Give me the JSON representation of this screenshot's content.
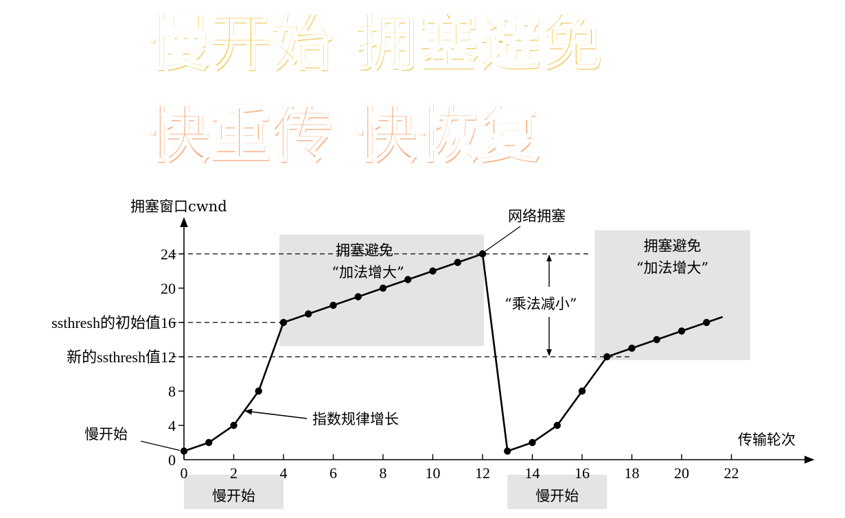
{
  "titles": {
    "line1": "慢开始 拥塞避免",
    "line2": "快重传 快恢复"
  },
  "chart_data": {
    "type": "line",
    "ylabel": "拥塞窗口cwnd",
    "xlabel": "传输轮次",
    "xlim": [
      0,
      23
    ],
    "ylim": [
      0,
      27
    ],
    "xticks": [
      0,
      2,
      4,
      6,
      8,
      10,
      12,
      14,
      16,
      18,
      20,
      22
    ],
    "yticks": [
      0,
      4,
      8,
      12,
      16,
      20,
      24
    ],
    "x": [
      0,
      1,
      2,
      3,
      4,
      5,
      6,
      7,
      8,
      9,
      10,
      11,
      12,
      13,
      14,
      15,
      16,
      17,
      18,
      19,
      20,
      21
    ],
    "y": [
      1,
      2,
      4,
      8,
      16,
      17,
      18,
      19,
      20,
      21,
      22,
      23,
      24,
      1,
      2,
      4,
      8,
      12,
      13,
      14,
      15,
      16
    ],
    "thresholds": [
      {
        "label": "ssthresh的初始值16",
        "value": 16
      },
      {
        "label": "新的ssthresh值12",
        "value": 12
      }
    ],
    "peak_line_value": 24,
    "regions": [
      {
        "label": "拥塞避免",
        "label2": "“加法增大”",
        "x_start": 4,
        "x_end": 12
      },
      {
        "label": "拥塞避免",
        "label2": "“加法增大”",
        "x_start": 17,
        "x_end": 22.7
      }
    ],
    "slow_start_regions": [
      {
        "label": "慢开始",
        "x_start": 0,
        "x_end": 4
      },
      {
        "label": "慢开始",
        "x_start": 13,
        "x_end": 17
      }
    ],
    "annotations": {
      "slow_start": "慢开始",
      "exponential": "指数规律增长",
      "congestion": "网络拥塞",
      "mult_decrease": "“乘法减小”"
    }
  }
}
